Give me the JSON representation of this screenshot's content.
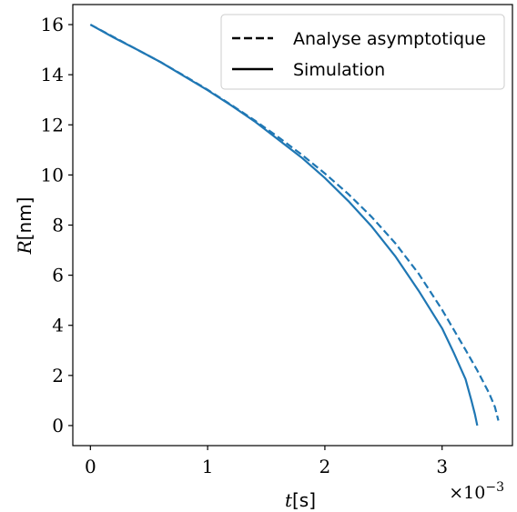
{
  "chart_data": {
    "type": "line",
    "title": "",
    "xlabel_var": "t",
    "xlabel_unit": "[s]",
    "ylabel_var": "R",
    "ylabel_unit": "[nm]",
    "x_multiplier": "×10",
    "x_multiplier_exp": "−3",
    "xlim": [
      -0.00015,
      0.0036
    ],
    "ylim": [
      -0.8,
      16.8
    ],
    "xticks": [
      0,
      0.001,
      0.002,
      0.003
    ],
    "xtick_labels": [
      "0",
      "1",
      "2",
      "3"
    ],
    "yticks": [
      0,
      2,
      4,
      6,
      8,
      10,
      12,
      14,
      16
    ],
    "ytick_labels": [
      "0",
      "2",
      "4",
      "6",
      "8",
      "10",
      "12",
      "14",
      "16"
    ],
    "grid": false,
    "legend_position": "top-right",
    "series_color": "#1f77b4",
    "series": [
      {
        "name": "Analyse asymptotique",
        "style": "dashed",
        "x": [
          0,
          0.0002,
          0.0004,
          0.0006,
          0.0008,
          0.001,
          0.0012,
          0.0014,
          0.0016,
          0.0018,
          0.002,
          0.0022,
          0.0024,
          0.0026,
          0.0028,
          0.003,
          0.0032,
          0.0033,
          0.0034,
          0.00345,
          0.00348
        ],
        "y": [
          16.0,
          15.5,
          15.0,
          14.5,
          13.96,
          13.4,
          12.8,
          12.18,
          11.52,
          10.82,
          10.06,
          9.24,
          8.32,
          7.28,
          6.06,
          4.62,
          3.02,
          2.2,
          1.3,
          0.75,
          0.2
        ]
      },
      {
        "name": "Simulation",
        "style": "solid",
        "x": [
          0,
          0.0002,
          0.0004,
          0.0006,
          0.0008,
          0.001,
          0.0012,
          0.0014,
          0.0016,
          0.0018,
          0.002,
          0.0022,
          0.0024,
          0.0026,
          0.0028,
          0.003,
          0.0031,
          0.0032,
          0.00325,
          0.00328,
          0.0033
        ],
        "y": [
          16.0,
          15.48,
          15.0,
          14.5,
          13.94,
          13.38,
          12.78,
          12.14,
          11.42,
          10.7,
          9.88,
          8.96,
          7.94,
          6.76,
          5.38,
          3.88,
          2.9,
          1.85,
          1.0,
          0.45,
          0.0
        ]
      }
    ]
  }
}
